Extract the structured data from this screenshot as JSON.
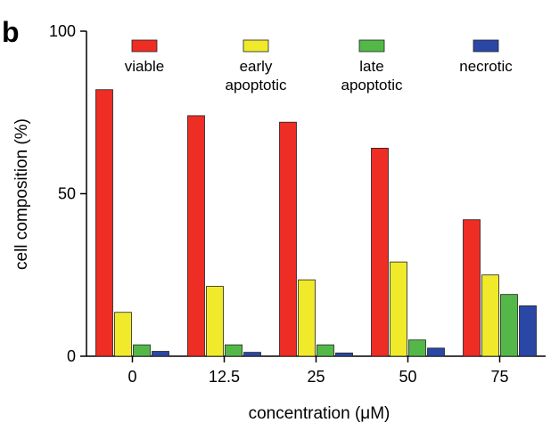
{
  "panel_label": "b",
  "chart_data": {
    "type": "bar",
    "categories": [
      "0",
      "12.5",
      "25",
      "50",
      "75"
    ],
    "series": [
      {
        "name": "viable",
        "color": "#ee2d24",
        "values": [
          82,
          74,
          72,
          64,
          42
        ]
      },
      {
        "name": "early apoptotic",
        "color": "#f0ea2b",
        "values": [
          13.5,
          21.5,
          23.5,
          29,
          25
        ]
      },
      {
        "name": "late apoptotic",
        "color": "#53b848",
        "values": [
          3.5,
          3.5,
          3.5,
          5,
          19
        ]
      },
      {
        "name": "necrotic",
        "color": "#2a47a6",
        "values": [
          1.5,
          1.2,
          1,
          2.5,
          15.5
        ]
      }
    ],
    "legend": [
      {
        "lines": [
          "viable"
        ],
        "color": "#ee2d24"
      },
      {
        "lines": [
          "early",
          "apoptotic"
        ],
        "color": "#f0ea2b"
      },
      {
        "lines": [
          "late",
          "apoptotic"
        ],
        "color": "#53b848"
      },
      {
        "lines": [
          "necrotic"
        ],
        "color": "#2a47a6"
      }
    ],
    "legend_position": "top",
    "xlabel": "concentration (μM)",
    "ylabel": "cell composition (%)",
    "ylim": [
      0,
      100
    ],
    "yticks": [
      0,
      50,
      100
    ],
    "grid": false
  }
}
